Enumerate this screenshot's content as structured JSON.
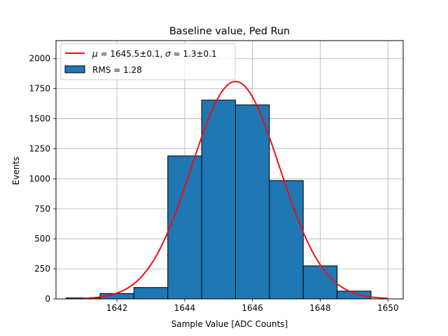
{
  "chart_data": {
    "type": "bar",
    "title": "Baseline value, Ped Run",
    "xlabel": "Sample Value [ADC Counts]",
    "ylabel": "Events",
    "xlim": [
      1640.2,
      1650.45
    ],
    "ylim": [
      0,
      2150
    ],
    "xticks": [
      1642,
      1644,
      1646,
      1648,
      1650
    ],
    "yticks": [
      0,
      250,
      500,
      750,
      1000,
      1250,
      1500,
      1750,
      2000
    ],
    "grid": true,
    "legend_position": "top-left",
    "bins": [
      {
        "x0": 1640.5,
        "x1": 1641.5,
        "value": 8
      },
      {
        "x0": 1641.5,
        "x1": 1642.5,
        "value": 45
      },
      {
        "x0": 1642.5,
        "x1": 1643.5,
        "value": 95
      },
      {
        "x0": 1643.5,
        "x1": 1644.5,
        "value": 1190
      },
      {
        "x0": 1644.5,
        "x1": 1645.5,
        "value": 1655
      },
      {
        "x0": 1645.5,
        "x1": 1646.5,
        "value": 1615
      },
      {
        "x0": 1646.5,
        "x1": 1647.5,
        "value": 985
      },
      {
        "x0": 1647.5,
        "x1": 1648.5,
        "value": 275
      },
      {
        "x0": 1648.5,
        "x1": 1649.5,
        "value": 65
      }
    ],
    "fit": {
      "mu": 1645.5,
      "sigma": 1.3,
      "amplitude": 1810,
      "x_range": [
        1641,
        1650
      ]
    },
    "series": [
      {
        "name": "RMS = 1.28",
        "kind": "histogram",
        "color": "#1f77b4"
      },
      {
        "name_parts": [
          "μ",
          " = 1645.5±0.1, ",
          "σ",
          " = 1.3±0.1"
        ],
        "kind": "fit",
        "color": "#ee1111"
      }
    ]
  }
}
